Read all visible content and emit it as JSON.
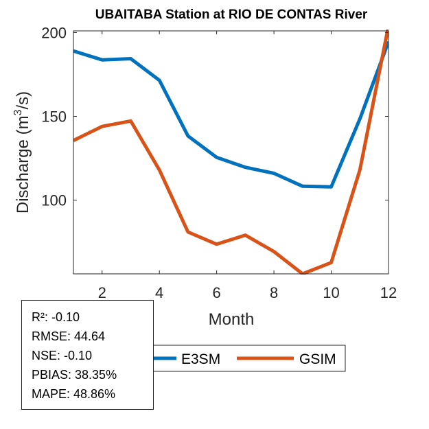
{
  "chart_data": {
    "type": "line",
    "title": "UBAITABA  Station at  RIO DE CONTAS  River",
    "xlabel": "Month",
    "ylabel": "Discharge (m",
    "ylabel_sup": "3",
    "ylabel_tail": "/s)",
    "xlim": [
      1,
      12
    ],
    "ylim": [
      56,
      201
    ],
    "xticks": [
      2,
      4,
      6,
      8,
      10,
      12
    ],
    "yticks": [
      100,
      150,
      200
    ],
    "x": [
      1,
      2,
      3,
      4,
      5,
      6,
      7,
      8,
      9,
      10,
      11,
      12
    ],
    "series": [
      {
        "name": "E3SM",
        "color": "#0072BD",
        "values": [
          189,
          183.7,
          184.4,
          171.5,
          138.3,
          125.5,
          119.6,
          116,
          108.3,
          107.9,
          148.5,
          194.6
        ]
      },
      {
        "name": "GSIM",
        "color": "#D95319",
        "values": [
          135.6,
          144,
          147.2,
          118,
          81,
          73.7,
          79.1,
          69.3,
          56,
          62.7,
          118,
          204
        ]
      }
    ],
    "legend": {
      "placement": "bottom-center",
      "orientation": "horizontal"
    },
    "grid": false
  },
  "stats": [
    "R²: -0.10",
    "RMSE: 44.64",
    "NSE: -0.10",
    "PBIAS: 38.35%",
    "MAPE: 48.86%"
  ]
}
